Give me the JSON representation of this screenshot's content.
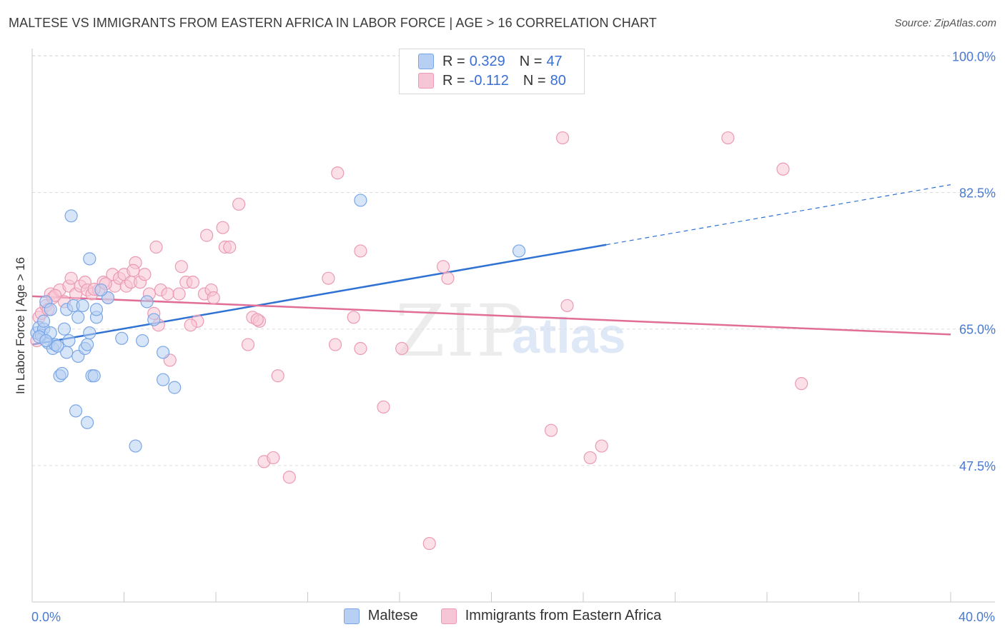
{
  "title": "MALTESE VS IMMIGRANTS FROM EASTERN AFRICA IN LABOR FORCE | AGE > 16 CORRELATION CHART",
  "source": "Source: ZipAtlas.com",
  "watermark": {
    "zip": "ZIP",
    "atlas": "atlas"
  },
  "legend": {
    "r_label": "R =",
    "n_label": "N =",
    "series1": {
      "r": "0.329",
      "n": "47"
    },
    "series2": {
      "r": "-0.112",
      "n": "80"
    }
  },
  "bottom_legend": {
    "series1": "Maltese",
    "series2": "Immigrants from Eastern Africa"
  },
  "chart_data": {
    "type": "scatter",
    "title": "MALTESE VS IMMIGRANTS FROM EASTERN AFRICA IN LABOR FORCE | AGE > 16 CORRELATION CHART",
    "xlabel": "",
    "ylabel": "In Labor Force | Age > 16",
    "xlim": [
      0,
      40
    ],
    "ylim": [
      30,
      101.5
    ],
    "x_tick_labels": [
      "0.0%",
      "40.0%"
    ],
    "y_ticks": [
      47.5,
      65.0,
      82.5,
      100.0
    ],
    "y_tick_labels": [
      "47.5%",
      "65.0%",
      "82.5%",
      "100.0%"
    ],
    "colors": {
      "series1": "#7aa6e6",
      "series1_fill": "#b6cff3",
      "series1_line": "#2f72d4",
      "series2": "#eb9ab4",
      "series2_fill": "#f7c6d6",
      "series2_line": "#e06e97"
    },
    "series": [
      {
        "name": "Maltese",
        "trend": {
          "x": [
            0,
            25
          ],
          "y": [
            63.0,
            75.8
          ],
          "dashed_to_x": 40,
          "dashed_to_y": 83.5
        },
        "points": [
          [
            0.2,
            64.5
          ],
          [
            0.3,
            65.2
          ],
          [
            0.4,
            64.2
          ],
          [
            0.5,
            65.0
          ],
          [
            0.6,
            68.5
          ],
          [
            0.7,
            63.2
          ],
          [
            0.8,
            64.5
          ],
          [
            0.8,
            67.5
          ],
          [
            0.9,
            62.5
          ],
          [
            1.0,
            63.0
          ],
          [
            1.2,
            59.0
          ],
          [
            1.3,
            59.3
          ],
          [
            1.4,
            65.0
          ],
          [
            1.5,
            67.5
          ],
          [
            1.5,
            62.0
          ],
          [
            1.6,
            63.5
          ],
          [
            1.7,
            79.5
          ],
          [
            1.8,
            68.0
          ],
          [
            1.9,
            54.5
          ],
          [
            2.0,
            66.5
          ],
          [
            2.0,
            61.5
          ],
          [
            2.2,
            68.0
          ],
          [
            2.3,
            62.5
          ],
          [
            2.4,
            53.0
          ],
          [
            2.4,
            63.0
          ],
          [
            2.5,
            74.0
          ],
          [
            2.5,
            64.5
          ],
          [
            2.6,
            59.0
          ],
          [
            2.7,
            59.0
          ],
          [
            2.8,
            66.5
          ],
          [
            2.8,
            67.5
          ],
          [
            3.3,
            69.0
          ],
          [
            3.9,
            63.8
          ],
          [
            4.5,
            50.0
          ],
          [
            4.8,
            63.5
          ],
          [
            5.0,
            68.5
          ],
          [
            5.3,
            66.2
          ],
          [
            5.7,
            62.0
          ],
          [
            5.7,
            58.5
          ],
          [
            6.2,
            57.5
          ],
          [
            14.3,
            81.5
          ],
          [
            21.2,
            75.0
          ],
          [
            0.3,
            64.0
          ],
          [
            0.6,
            63.5
          ],
          [
            1.1,
            62.8
          ],
          [
            0.5,
            66.0
          ],
          [
            3.0,
            70.0
          ]
        ]
      },
      {
        "name": "Immigrants from Eastern Africa",
        "trend": {
          "x": [
            0,
            40
          ],
          "y": [
            69.2,
            64.3
          ]
        },
        "points": [
          [
            0.2,
            63.5
          ],
          [
            0.3,
            66.5
          ],
          [
            0.4,
            67.0
          ],
          [
            0.6,
            68.0
          ],
          [
            0.7,
            67.5
          ],
          [
            0.8,
            69.5
          ],
          [
            0.9,
            69.0
          ],
          [
            1.2,
            70.0
          ],
          [
            1.4,
            68.5
          ],
          [
            1.6,
            70.5
          ],
          [
            1.7,
            71.5
          ],
          [
            1.9,
            69.5
          ],
          [
            2.1,
            70.5
          ],
          [
            2.3,
            71.0
          ],
          [
            2.4,
            70.0
          ],
          [
            2.6,
            69.5
          ],
          [
            2.9,
            70.0
          ],
          [
            3.1,
            71.0
          ],
          [
            3.3,
            69.0
          ],
          [
            3.5,
            72.0
          ],
          [
            3.6,
            70.5
          ],
          [
            3.8,
            71.5
          ],
          [
            4.0,
            72.0
          ],
          [
            4.1,
            70.5
          ],
          [
            4.3,
            71.0
          ],
          [
            4.5,
            73.5
          ],
          [
            4.7,
            71.0
          ],
          [
            4.9,
            72.0
          ],
          [
            5.1,
            69.5
          ],
          [
            5.3,
            67.0
          ],
          [
            5.4,
            75.5
          ],
          [
            5.6,
            70.0
          ],
          [
            5.9,
            69.5
          ],
          [
            6.4,
            69.5
          ],
          [
            6.5,
            73.0
          ],
          [
            6.7,
            71.0
          ],
          [
            7.0,
            71.0
          ],
          [
            7.2,
            66.0
          ],
          [
            7.5,
            69.5
          ],
          [
            7.6,
            77.0
          ],
          [
            7.8,
            70.0
          ],
          [
            7.9,
            69.0
          ],
          [
            8.3,
            78.0
          ],
          [
            8.4,
            75.5
          ],
          [
            8.6,
            75.5
          ],
          [
            9.0,
            81.0
          ],
          [
            9.4,
            63.0
          ],
          [
            9.6,
            66.5
          ],
          [
            9.9,
            66.0
          ],
          [
            10.1,
            48.0
          ],
          [
            10.5,
            48.5
          ],
          [
            10.7,
            59.0
          ],
          [
            11.2,
            46.0
          ],
          [
            12.9,
            71.5
          ],
          [
            13.2,
            63.0
          ],
          [
            13.3,
            85.0
          ],
          [
            14.0,
            66.5
          ],
          [
            14.3,
            62.5
          ],
          [
            14.3,
            75.0
          ],
          [
            15.3,
            55.0
          ],
          [
            16.1,
            62.5
          ],
          [
            17.3,
            37.5
          ],
          [
            17.9,
            73.0
          ],
          [
            18.1,
            71.5
          ],
          [
            22.6,
            52.0
          ],
          [
            23.1,
            89.5
          ],
          [
            23.3,
            68.0
          ],
          [
            24.3,
            48.5
          ],
          [
            24.8,
            50.0
          ],
          [
            30.3,
            89.5
          ],
          [
            32.7,
            85.5
          ],
          [
            33.5,
            58.0
          ],
          [
            6.9,
            65.5
          ],
          [
            5.5,
            65.5
          ],
          [
            3.2,
            70.8
          ],
          [
            6.0,
            61.0
          ],
          [
            9.8,
            66.2
          ],
          [
            4.4,
            72.5
          ],
          [
            1.0,
            69.3
          ],
          [
            2.7,
            70.1
          ]
        ]
      }
    ]
  }
}
